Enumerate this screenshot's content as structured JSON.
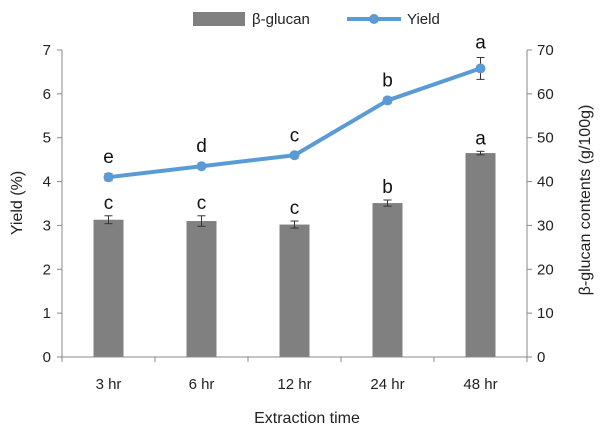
{
  "chart_data": {
    "type": "bar",
    "categories": [
      "3 hr",
      "6 hr",
      "12 hr",
      "24 hr",
      "48 hr"
    ],
    "xlabel": "Extraction time",
    "ylabel": "Yield (%)",
    "y2label": "β-glucan contents (g/100g)",
    "ylim": [
      0,
      7
    ],
    "y2lim": [
      0,
      70
    ],
    "yticks": [
      "0",
      "1",
      "2",
      "3",
      "4",
      "5",
      "6",
      "7"
    ],
    "y2ticks": [
      "0",
      "10",
      "20",
      "30",
      "40",
      "50",
      "60",
      "70"
    ],
    "grid": false,
    "legend_position": "top",
    "series": [
      {
        "name": "β-glucan",
        "type": "bar",
        "axis": "right",
        "color": "#808080",
        "values": [
          31.3,
          31.0,
          30.2,
          35.1,
          46.5
        ],
        "errors": [
          0.9,
          1.2,
          0.8,
          0.7,
          0.4
        ],
        "labels": [
          "c",
          "c",
          "c",
          "b",
          "a"
        ]
      },
      {
        "name": "Yield",
        "type": "line",
        "axis": "left",
        "color": "#5B9BD5",
        "values": [
          4.1,
          4.35,
          4.6,
          5.85,
          6.58
        ],
        "errors": [
          0.08,
          0.04,
          0.06,
          0.07,
          0.25
        ],
        "labels": [
          "e",
          "d",
          "c",
          "b",
          "a"
        ]
      }
    ]
  }
}
